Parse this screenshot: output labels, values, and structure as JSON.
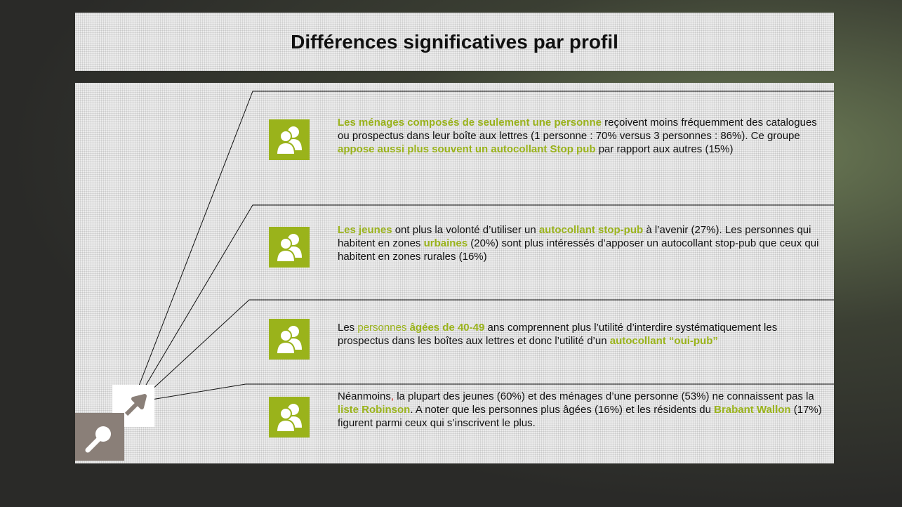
{
  "header": {
    "title": "Différences significatives par profil"
  },
  "items": [
    {
      "segments": [
        {
          "text": "Les ménages composés de seulement une personne",
          "color": "#9ab31b",
          "bold": true
        },
        {
          "text": " reçoivent moins fréquemment des catalogues ou prospectus dans leur boîte aux lettres (1 personne : 70% versus 3 personnes : 86%). Ce groupe "
        },
        {
          "text": "appose aussi plus souvent un autocollant Stop pub",
          "color": "#9ab31b",
          "bold": true
        },
        {
          "text": " par rapport aux autres (15%)"
        }
      ]
    },
    {
      "segments": [
        {
          "text": "Les jeunes",
          "color": "#9ab31b",
          "bold": true
        },
        {
          "text": " ont plus la volonté d’utiliser un "
        },
        {
          "text": "autocollant stop-pub",
          "color": "#9ab31b",
          "bold": true
        },
        {
          "text": " à l’avenir (27%). Les personnes qui habitent  en zones "
        },
        {
          "text": "urbaines",
          "color": "#9ab31b",
          "bold": true
        },
        {
          "text": " (20%) sont plus intéressés d’apposer un autocollant stop-pub que ceux qui habitent en zones rurales (16%)"
        }
      ]
    },
    {
      "segments": [
        {
          "text": "Les "
        },
        {
          "text": "personnes",
          "color": "#9ab31b"
        },
        {
          "text": " "
        },
        {
          "text": "âgées de 40-49",
          "color": "#9ab31b",
          "bold": true
        },
        {
          "text": " ans comprennent plus l’utilité d’interdire systématiquement les prospectus dans les boîtes aux lettres et donc l’utilité d’un "
        },
        {
          "text": "autocollant “oui-pub”",
          "color": "#9ab31b",
          "bold": true
        }
      ]
    },
    {
      "segments": [
        {
          "text": "Néanmoins"
        },
        {
          "text": ",",
          "color": "#d02020"
        },
        {
          "text": " la plupart des jeunes (60%) et des ménages d’une personne (53%) ne connaissent pas la "
        },
        {
          "text": "liste Robinson",
          "color": "#9ab31b",
          "bold": true
        },
        {
          "text": ". A noter que les personnes plus âgées (16%) et les résidents du "
        },
        {
          "text": "Brabant Wallon",
          "color": "#9ab31b",
          "bold": true
        },
        {
          "text": " (17%) figurent parmi ceux qui s’inscrivent le plus."
        }
      ]
    }
  ]
}
